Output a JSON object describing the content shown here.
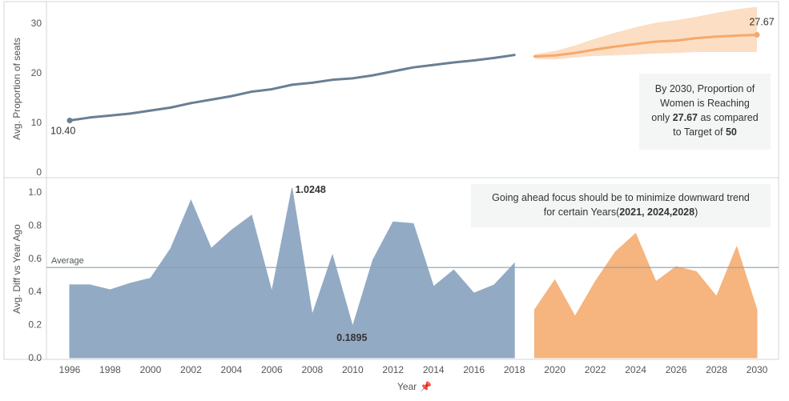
{
  "chart_data": [
    {
      "type": "line",
      "ylabel": "Avg. Proportion of seats",
      "yticks": [
        0,
        10,
        20,
        30
      ],
      "ylim": [
        0,
        32.5
      ],
      "series": [
        {
          "role": "actual",
          "color": "#697f94",
          "x": [
            1996,
            1997,
            1998,
            1999,
            2000,
            2001,
            2002,
            2003,
            2004,
            2005,
            2006,
            2007,
            2008,
            2009,
            2010,
            2011,
            2012,
            2013,
            2014,
            2015,
            2016,
            2017,
            2018
          ],
          "values": [
            10.4,
            11.0,
            11.4,
            11.8,
            12.4,
            13.0,
            13.9,
            14.6,
            15.3,
            16.2,
            16.7,
            17.6,
            18.0,
            18.6,
            18.9,
            19.5,
            20.3,
            21.1,
            21.6,
            22.1,
            22.5,
            23.0,
            23.6
          ]
        },
        {
          "role": "forecast",
          "color": "#f5a96c",
          "band_color": "#f9c89d",
          "x": [
            2019,
            2020,
            2021,
            2022,
            2023,
            2024,
            2025,
            2026,
            2027,
            2028,
            2029,
            2030
          ],
          "values": [
            23.3,
            23.5,
            24.0,
            24.7,
            25.3,
            25.8,
            26.3,
            26.5,
            27.0,
            27.3,
            27.5,
            27.67
          ],
          "upper": [
            23.8,
            24.4,
            25.5,
            26.9,
            28.1,
            29.2,
            30.1,
            30.6,
            31.3,
            32.1,
            32.8,
            33.3
          ],
          "lower": [
            22.8,
            22.7,
            23.1,
            23.4,
            23.5,
            23.7,
            23.9,
            24.0,
            24.2,
            24.2,
            24.2,
            24.2
          ]
        }
      ],
      "point_labels": [
        {
          "x": 1996,
          "value": 10.4,
          "text": "10.40"
        },
        {
          "x": 2030,
          "value": 27.67,
          "text": "27.67"
        }
      ]
    },
    {
      "type": "area",
      "ylabel": "Avg. Diff vs Year Ago",
      "xlabel": "Year",
      "yticks": [
        0.0,
        0.2,
        0.4,
        0.6,
        0.8,
        1.0
      ],
      "ytick_labels": [
        "0.0",
        "0.2",
        "0.4",
        "0.6",
        "0.8",
        "1.0"
      ],
      "ylim": [
        0.0,
        1.05
      ],
      "x_ticks": [
        1996,
        1998,
        2000,
        2002,
        2004,
        2006,
        2008,
        2010,
        2012,
        2014,
        2016,
        2018,
        2020,
        2022,
        2024,
        2026,
        2028,
        2030
      ],
      "series": [
        {
          "role": "actual",
          "color": "#92aac4",
          "x": [
            1996,
            1997,
            1998,
            1999,
            2000,
            2001,
            2002,
            2003,
            2004,
            2005,
            2006,
            2007,
            2008,
            2009,
            2010,
            2011,
            2012,
            2013,
            2014,
            2015,
            2016,
            2017,
            2018
          ],
          "values": [
            0.44,
            0.44,
            0.41,
            0.45,
            0.48,
            0.66,
            0.95,
            0.66,
            0.77,
            0.86,
            0.4,
            1.0248,
            0.26,
            0.62,
            0.1895,
            0.59,
            0.82,
            0.81,
            0.43,
            0.53,
            0.39,
            0.44,
            0.57
          ]
        },
        {
          "role": "forecast",
          "color": "#f6b47e",
          "x": [
            2019,
            2020,
            2021,
            2022,
            2023,
            2024,
            2025,
            2026,
            2027,
            2028,
            2029,
            2030
          ],
          "values": [
            0.29,
            0.47,
            0.25,
            0.46,
            0.64,
            0.75,
            0.46,
            0.55,
            0.52,
            0.37,
            0.67,
            0.29
          ]
        }
      ],
      "reference_line": {
        "label": "Average",
        "value": 0.545,
        "color": "#8c9fae"
      },
      "point_labels": [
        {
          "x": 2007,
          "value": 1.0248,
          "text": "1.0248"
        },
        {
          "x": 2010,
          "value": 0.1895,
          "text": "0.1895"
        }
      ]
    }
  ],
  "annotations": {
    "top_note": {
      "line1": "By 2030, Proportion of",
      "line2": "Women is Reaching",
      "line3_pre": "only ",
      "line3_bold": "27.67",
      "line3_post": " as compared",
      "line4_pre": "to Target of ",
      "line4_bold": "50"
    },
    "bottom_note": {
      "line1": "Going ahead focus should be to minimize downward trend",
      "line2_pre": "for certain Years(",
      "line2_bold": "2021, 2024,2028",
      "line2_post": ")"
    }
  },
  "x_axis_title": "Year",
  "x_axis_pin_icon": "pin-icon"
}
